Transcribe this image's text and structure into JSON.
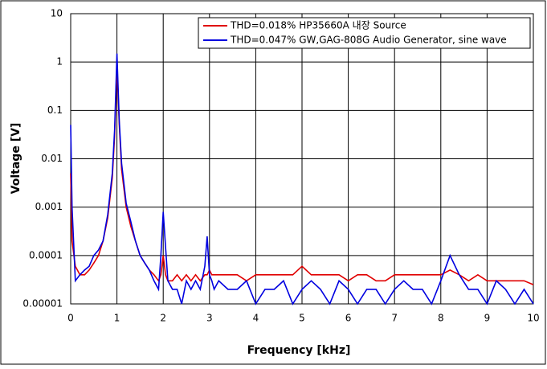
{
  "chart_data": {
    "type": "line",
    "xlabel": "Frequency [kHz]",
    "ylabel": "Voltage [V]",
    "x": [
      0,
      0.03,
      0.1,
      0.2,
      0.3,
      0.4,
      0.5,
      0.6,
      0.7,
      0.8,
      0.9,
      0.95,
      1.0,
      1.05,
      1.1,
      1.2,
      1.3,
      1.4,
      1.5,
      1.6,
      1.7,
      1.8,
      1.9,
      1.95,
      2.0,
      2.05,
      2.1,
      2.2,
      2.3,
      2.4,
      2.5,
      2.6,
      2.7,
      2.8,
      2.9,
      2.95,
      3.0,
      3.05,
      3.1,
      3.2,
      3.4,
      3.6,
      3.8,
      4.0,
      4.2,
      4.4,
      4.6,
      4.8,
      5.0,
      5.2,
      5.4,
      5.6,
      5.8,
      6.0,
      6.2,
      6.4,
      6.6,
      6.8,
      7.0,
      7.2,
      7.4,
      7.6,
      7.8,
      8.0,
      8.2,
      8.4,
      8.6,
      8.8,
      9.0,
      9.2,
      9.4,
      9.6,
      9.8,
      10.0
    ],
    "series": [
      {
        "name": "THD=0.018% HP35660A 내장 Source",
        "color": "#e00000",
        "values": [
          0.005,
          0.0002,
          6e-05,
          4e-05,
          4e-05,
          5e-05,
          7e-05,
          0.0001,
          0.0002,
          0.0006,
          0.004,
          0.03,
          0.9,
          0.05,
          0.006,
          0.001,
          0.0004,
          0.0002,
          0.0001,
          7e-05,
          5e-05,
          4e-05,
          3e-05,
          4e-05,
          0.0001,
          4e-05,
          3e-05,
          3e-05,
          4e-05,
          3e-05,
          4e-05,
          3e-05,
          4e-05,
          3e-05,
          4e-05,
          4e-05,
          5e-05,
          4e-05,
          4e-05,
          4e-05,
          4e-05,
          4e-05,
          3e-05,
          4e-05,
          4e-05,
          4e-05,
          4e-05,
          4e-05,
          6e-05,
          4e-05,
          4e-05,
          4e-05,
          4e-05,
          3e-05,
          4e-05,
          4e-05,
          3e-05,
          3e-05,
          4e-05,
          4e-05,
          4e-05,
          4e-05,
          4e-05,
          4e-05,
          5e-05,
          4e-05,
          3e-05,
          4e-05,
          3e-05,
          3e-05,
          3e-05,
          3e-05,
          3e-05,
          2.5e-05
        ]
      },
      {
        "name": "THD=0.047% GW,GAG-808G Audio Generator, sine wave",
        "color": "#0000e0",
        "values": [
          0.05,
          0.001,
          3e-05,
          4e-05,
          5e-05,
          6e-05,
          0.0001,
          0.00013,
          0.0002,
          0.0007,
          0.005,
          0.04,
          1.5,
          0.06,
          0.008,
          0.0012,
          0.0005,
          0.0002,
          0.0001,
          7e-05,
          5e-05,
          3e-05,
          2e-05,
          0.0001,
          0.0008,
          0.00015,
          3e-05,
          2e-05,
          2e-05,
          1e-05,
          3e-05,
          2e-05,
          3e-05,
          2e-05,
          6e-05,
          0.00025,
          4e-05,
          3e-05,
          2e-05,
          3e-05,
          2e-05,
          2e-05,
          3e-05,
          1e-05,
          2e-05,
          2e-05,
          3e-05,
          1e-05,
          2e-05,
          3e-05,
          2e-05,
          1e-05,
          3e-05,
          2e-05,
          1e-05,
          2e-05,
          2e-05,
          1e-05,
          2e-05,
          3e-05,
          2e-05,
          2e-05,
          1e-05,
          3e-05,
          0.0001,
          4e-05,
          2e-05,
          2e-05,
          1e-05,
          3e-05,
          2e-05,
          1e-05,
          2e-05,
          1e-05
        ]
      }
    ],
    "xlim": [
      0,
      10
    ],
    "xticks": [
      0,
      1,
      2,
      3,
      4,
      5,
      6,
      7,
      8,
      9,
      10
    ],
    "ylim": [
      1e-05,
      10
    ],
    "yticks": [
      10,
      1,
      0.1,
      0.01,
      0.001,
      0.0001,
      1e-05
    ],
    "yscale": "log",
    "grid": true,
    "legend": "top-right"
  }
}
